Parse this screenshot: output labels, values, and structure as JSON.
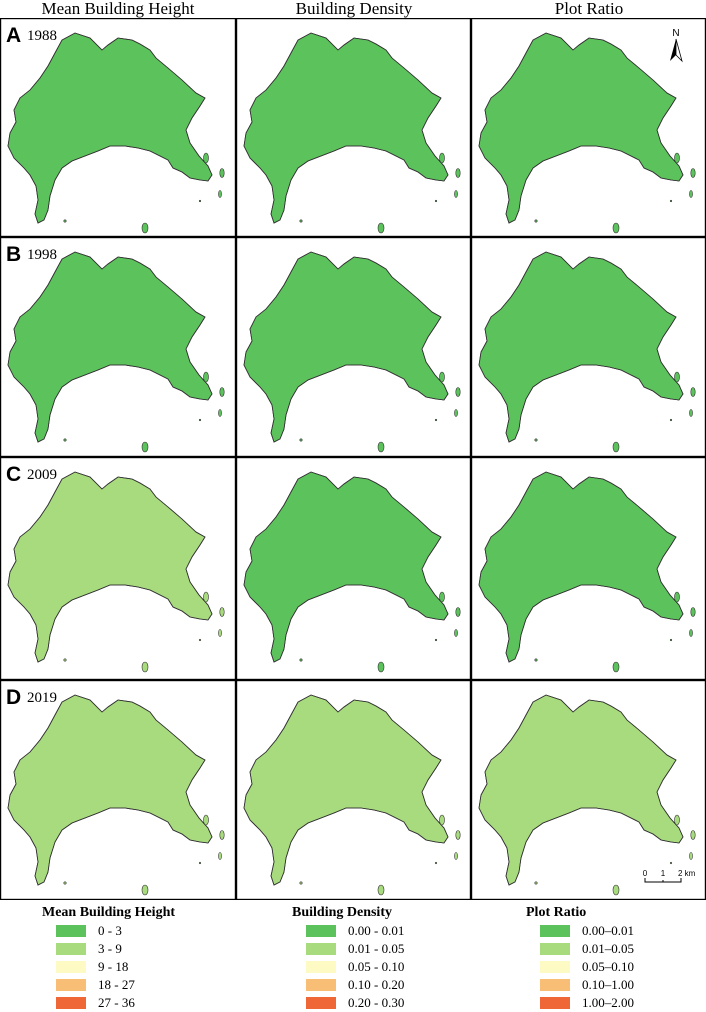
{
  "columns": [
    {
      "title": "Mean Building Height"
    },
    {
      "title": "Building Density"
    },
    {
      "title": "Plot Ratio"
    }
  ],
  "rows": [
    {
      "letter": "A",
      "year": "1988"
    },
    {
      "letter": "B",
      "year": "1998"
    },
    {
      "letter": "C",
      "year": "2009"
    },
    {
      "letter": "D",
      "year": "2019"
    }
  ],
  "colors": {
    "c0": "#5cc35c",
    "c1": "#a8db7e",
    "c2": "#fdfbc3",
    "c3": "#f9be75",
    "c4": "#ef6637",
    "boundary": "#333333"
  },
  "north_arrow": {
    "label": "N"
  },
  "scale_bar": {
    "labels": [
      "0",
      "1",
      "2 km"
    ]
  },
  "legends": [
    {
      "title": "Mean Building Height",
      "items": [
        {
          "label": "0 - 3",
          "color": "#5cc35c"
        },
        {
          "label": "3 - 9",
          "color": "#a8db7e"
        },
        {
          "label": "9 - 18",
          "color": "#fdfbc3"
        },
        {
          "label": "18 - 27",
          "color": "#f9be75"
        },
        {
          "label": "27 - 36",
          "color": "#ef6637"
        }
      ]
    },
    {
      "title": "Building Density",
      "items": [
        {
          "label": "0.00 - 0.01",
          "color": "#5cc35c"
        },
        {
          "label": "0.01 - 0.05",
          "color": "#a8db7e"
        },
        {
          "label": "0.05 - 0.10",
          "color": "#fdfbc3"
        },
        {
          "label": "0.10 - 0.20",
          "color": "#f9be75"
        },
        {
          "label": "0.20 - 0.30",
          "color": "#ef6637"
        }
      ]
    },
    {
      "title": "Plot Ratio",
      "items": [
        {
          "label": "0.00–0.01",
          "color": "#5cc35c"
        },
        {
          "label": "0.01–0.05",
          "color": "#a8db7e"
        },
        {
          "label": "0.05–0.10",
          "color": "#fdfbc3"
        },
        {
          "label": "0.10–1.00",
          "color": "#f9be75"
        },
        {
          "label": "1.00–2.00",
          "color": "#ef6637"
        }
      ]
    }
  ]
}
